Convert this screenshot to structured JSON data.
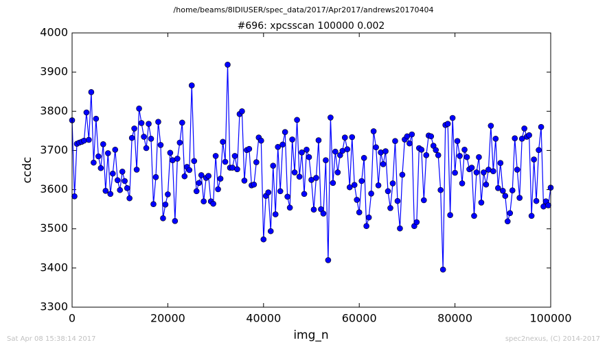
{
  "chart_data": {
    "type": "line",
    "suptitle": "/home/beams/8IDIUSER/spec_data/2017/Apr2017/andrews20170404",
    "title": "#696: xpcsscan 100000 0.002",
    "xlabel": "img_n",
    "ylabel": "ccdc",
    "footer_left": "Sat Apr 08 15:38:14 2017",
    "footer_right": "spec2nexus, (C) 2014-2017",
    "xlim": [
      0,
      100000
    ],
    "xticks": [
      0,
      20000,
      40000,
      60000,
      80000,
      100000
    ],
    "ylim": [
      3300,
      4000
    ],
    "yticks": [
      3300,
      3400,
      3500,
      3600,
      3700,
      3800,
      3900,
      4000
    ],
    "color": "#0000ff",
    "x": [
      0,
      500,
      1000,
      1500,
      2000,
      2500,
      3000,
      3500,
      4000,
      4500,
      5000,
      5500,
      6000,
      6500,
      7000,
      7500,
      8000,
      8500,
      9000,
      9500,
      10000,
      10500,
      11000,
      11500,
      12000,
      12500,
      13000,
      13500,
      14000,
      14500,
      15000,
      15500,
      16000,
      16500,
      17000,
      17500,
      18000,
      18500,
      19000,
      19500,
      20000,
      20500,
      21000,
      21500,
      22000,
      22500,
      23000,
      23500,
      24000,
      24500,
      25000,
      25500,
      26000,
      26500,
      27000,
      27500,
      28000,
      28500,
      29000,
      29500,
      30000,
      30500,
      31000,
      31500,
      32000,
      32500,
      33000,
      33500,
      34000,
      34500,
      35000,
      35500,
      36000,
      36500,
      37000,
      37500,
      38000,
      38500,
      39000,
      39500,
      40000,
      40500,
      41000,
      41500,
      42000,
      42500,
      43000,
      43500,
      44000,
      44500,
      45000,
      45500,
      46000,
      46500,
      47000,
      47500,
      48000,
      48500,
      49000,
      49500,
      50000,
      50500,
      51000,
      51500,
      52000,
      52500,
      53000,
      53500,
      54000,
      54500,
      55000,
      55500,
      56000,
      56500,
      57000,
      57500,
      58000,
      58500,
      59000,
      59500,
      60000,
      60500,
      61000,
      61500,
      62000,
      62500,
      63000,
      63500,
      64000,
      64500,
      65000,
      65500,
      66000,
      66500,
      67000,
      67500,
      68000,
      68500,
      69000,
      69500,
      70000,
      70500,
      71000,
      71500,
      72000,
      72500,
      73000,
      73500,
      74000,
      74500,
      75000,
      75500,
      76000,
      76500,
      77000,
      77500,
      78000,
      78500,
      79000,
      79500,
      80000,
      80500,
      81000,
      81500,
      82000,
      82500,
      83000,
      83500,
      84000,
      84500,
      85000,
      85500,
      86000,
      86500,
      87000,
      87500,
      88000,
      88500,
      89000,
      89500,
      90000,
      90500,
      91000,
      91500,
      92000,
      92500,
      93000,
      93500,
      94000,
      94500,
      95000,
      95500,
      96000,
      96500,
      97000,
      97500,
      98000,
      98500,
      99000,
      99500,
      100000
    ],
    "values": [
      3777,
      3583,
      3717,
      3720,
      3722,
      3725,
      3797,
      3727,
      3849,
      3669,
      3781,
      3685,
      3655,
      3716,
      3597,
      3693,
      3589,
      3641,
      3702,
      3624,
      3599,
      3646,
      3622,
      3604,
      3578,
      3732,
      3756,
      3651,
      3807,
      3770,
      3735,
      3706,
      3768,
      3730,
      3563,
      3632,
      3773,
      3714,
      3527,
      3562,
      3588,
      3694,
      3675,
      3520,
      3679,
      3720,
      3771,
      3634,
      3658,
      3650,
      3866,
      3673,
      3596,
      3617,
      3637,
      3570,
      3630,
      3635,
      3570,
      3564,
      3686,
      3601,
      3628,
      3722,
      3671,
      3919,
      3656,
      3656,
      3686,
      3652,
      3793,
      3800,
      3623,
      3701,
      3704,
      3611,
      3613,
      3670,
      3733,
      3725,
      3473,
      3584,
      3593,
      3494,
      3661,
      3537,
      3709,
      3596,
      3715,
      3747,
      3582,
      3554,
      3728,
      3644,
      3778,
      3633,
      3695,
      3589,
      3702,
      3683,
      3625,
      3549,
      3630,
      3726,
      3550,
      3539,
      3675,
      3420,
      3784,
      3617,
      3697,
      3644,
      3688,
      3699,
      3733,
      3703,
      3606,
      3734,
      3612,
      3574,
      3542,
      3622,
      3681,
      3507,
      3529,
      3590,
      3749,
      3708,
      3611,
      3695,
      3665,
      3698,
      3596,
      3553,
      3616,
      3724,
      3571,
      3501,
      3638,
      3728,
      3736,
      3718,
      3741,
      3507,
      3517,
      3706,
      3702,
      3573,
      3688,
      3738,
      3736,
      3712,
      3701,
      3688,
      3599,
      3396,
      3765,
      3768,
      3535,
      3783,
      3643,
      3724,
      3686,
      3616,
      3702,
      3683,
      3652,
      3656,
      3533,
      3644,
      3683,
      3567,
      3644,
      3613,
      3651,
      3763,
      3647,
      3730,
      3604,
      3668,
      3597,
      3584,
      3519,
      3540,
      3598,
      3731,
      3651,
      3579,
      3730,
      3756,
      3735,
      3739,
      3533,
      3677,
      3571,
      3701,
      3760,
      3557,
      3570,
      3560,
      3605
    ]
  }
}
